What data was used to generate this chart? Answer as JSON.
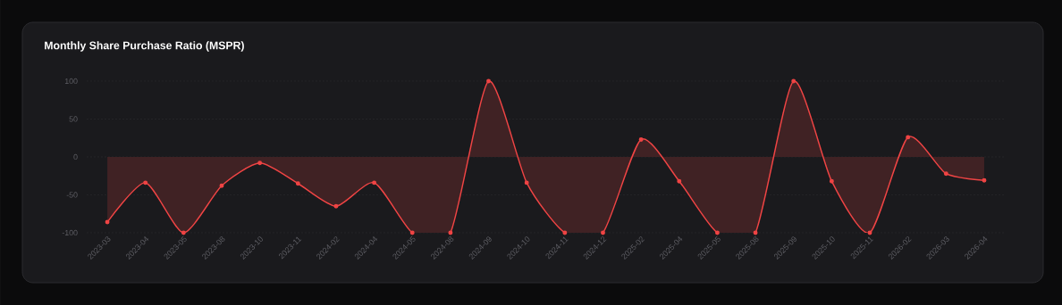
{
  "chart_data": {
    "type": "area",
    "title": "Monthly Share Purchase Ratio (MSPR)",
    "categories": [
      "2023-03",
      "2023-04",
      "2023-05",
      "2023-08",
      "2023-10",
      "2023-11",
      "2024-02",
      "2024-04",
      "2024-05",
      "2024-08",
      "2024-09",
      "2024-10",
      "2024-11",
      "2024-12",
      "2025-02",
      "2025-04",
      "2025-05",
      "2025-08",
      "2025-09",
      "2025-10",
      "2025-11",
      "2026-02",
      "2026-03",
      "2026-04"
    ],
    "values": [
      -86,
      -34,
      -100,
      -38,
      -8,
      -35,
      -65,
      -34,
      -100,
      -100,
      100,
      -34,
      -100,
      -100,
      23,
      -32,
      -100,
      -100,
      100,
      -32,
      -100,
      26,
      -22,
      -31
    ],
    "color": "#ef4444",
    "ylim": [
      -100,
      100
    ],
    "yticks": [
      -100,
      -50,
      0,
      50,
      100
    ],
    "grid": "y",
    "marker": "circle",
    "line_style": "solid"
  }
}
